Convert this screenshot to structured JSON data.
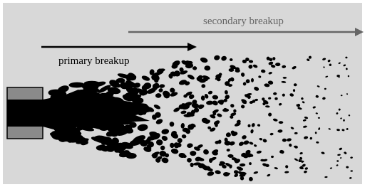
{
  "labels": {
    "secondary": "secondary breakup",
    "primary": "primary breakup"
  }
}
